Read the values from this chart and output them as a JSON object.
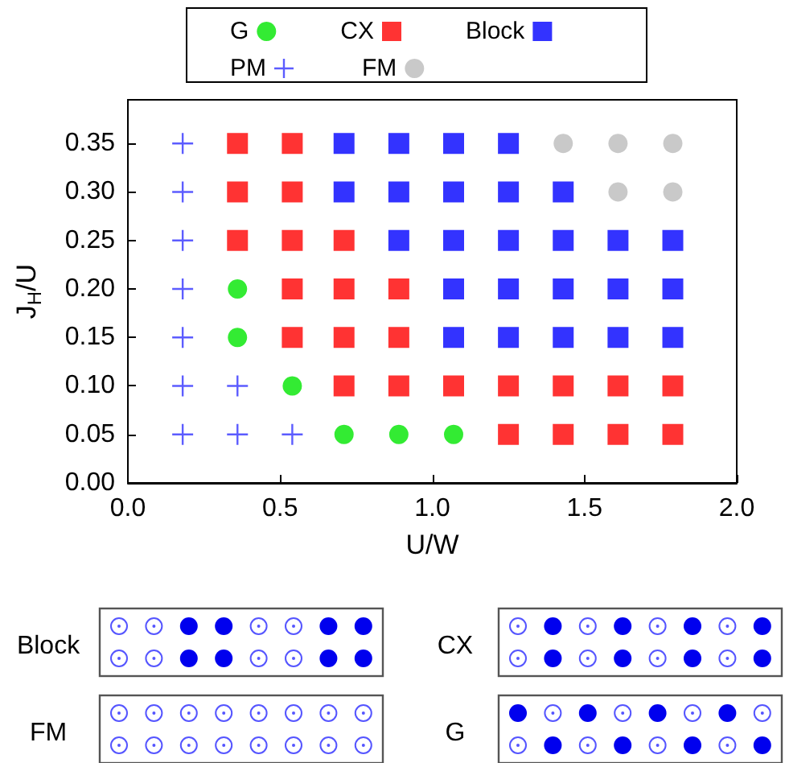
{
  "chart_data": {
    "type": "scatter",
    "xlabel": "U/W",
    "ylabel": "J$_{H}$/U",
    "xlim": [
      0,
      2
    ],
    "xticks": [
      {
        "value": 0,
        "label": "0.0"
      },
      {
        "value": 0.5,
        "label": "0.5"
      },
      {
        "value": 1,
        "label": "1.0"
      },
      {
        "value": 1.5,
        "label": "1.5"
      },
      {
        "value": 2,
        "label": "2.0"
      }
    ],
    "ylim": [
      0,
      0.395
    ],
    "yticks": [
      {
        "value": 0,
        "label": "0.00"
      },
      {
        "value": 0.05,
        "label": "0.05"
      },
      {
        "value": 0.1,
        "label": "0.10"
      },
      {
        "value": 0.15,
        "label": "0.15"
      },
      {
        "value": 0.2,
        "label": "0.20"
      },
      {
        "value": 0.25,
        "label": "0.25"
      },
      {
        "value": 0.3,
        "label": "0.30"
      },
      {
        "value": 0.35,
        "label": "0.35"
      }
    ],
    "grid": false,
    "legend": "top",
    "series": [
      {
        "name": "G",
        "color": "#00e600",
        "marker": "circle",
        "x": [
          0.36,
          0.36,
          0.54,
          0.71,
          0.89,
          1.07
        ],
        "values": [
          0.2,
          0.15,
          0.1,
          0.05,
          0.05,
          0.05
        ]
      },
      {
        "name": "CX",
        "color": "#ff0000",
        "marker": "square",
        "x": [
          0.36,
          0.54,
          0.36,
          0.54,
          0.36,
          0.54,
          0.71,
          0.54,
          0.71,
          0.89,
          0.54,
          0.71,
          0.89,
          0.71,
          0.89,
          1.07,
          1.25,
          1.43,
          1.61,
          1.79,
          1.25,
          1.43,
          1.61,
          1.79
        ],
        "values": [
          0.35,
          0.35,
          0.3,
          0.3,
          0.25,
          0.25,
          0.25,
          0.2,
          0.2,
          0.2,
          0.15,
          0.15,
          0.15,
          0.1,
          0.1,
          0.1,
          0.1,
          0.1,
          0.1,
          0.1,
          0.05,
          0.05,
          0.05,
          0.05
        ]
      },
      {
        "name": "Block",
        "color": "#0000ff",
        "marker": "square",
        "x": [
          0.71,
          0.89,
          1.07,
          1.25,
          0.71,
          0.89,
          1.07,
          1.25,
          1.43,
          0.89,
          1.07,
          1.25,
          1.43,
          1.61,
          1.79,
          1.07,
          1.25,
          1.43,
          1.61,
          1.79,
          1.07,
          1.25,
          1.43,
          1.61,
          1.79
        ],
        "values": [
          0.35,
          0.35,
          0.35,
          0.35,
          0.3,
          0.3,
          0.3,
          0.3,
          0.3,
          0.25,
          0.25,
          0.25,
          0.25,
          0.25,
          0.25,
          0.2,
          0.2,
          0.2,
          0.2,
          0.2,
          0.15,
          0.15,
          0.15,
          0.15,
          0.15
        ]
      },
      {
        "name": "PM",
        "color": "#3333ff",
        "marker": "cross",
        "x": [
          0.18,
          0.18,
          0.18,
          0.18,
          0.18,
          0.18,
          0.36,
          0.18,
          0.36,
          0.54
        ],
        "values": [
          0.35,
          0.3,
          0.25,
          0.2,
          0.15,
          0.1,
          0.1,
          0.05,
          0.05,
          0.05
        ]
      },
      {
        "name": "FM",
        "color": "#bbbbbb",
        "marker": "circle",
        "x": [
          1.43,
          1.61,
          1.79,
          1.61,
          1.79
        ],
        "values": [
          0.35,
          0.35,
          0.35,
          0.3,
          0.3
        ]
      }
    ],
    "annotations": [
      "Block",
      "CX",
      "FM",
      "G"
    ]
  }
}
